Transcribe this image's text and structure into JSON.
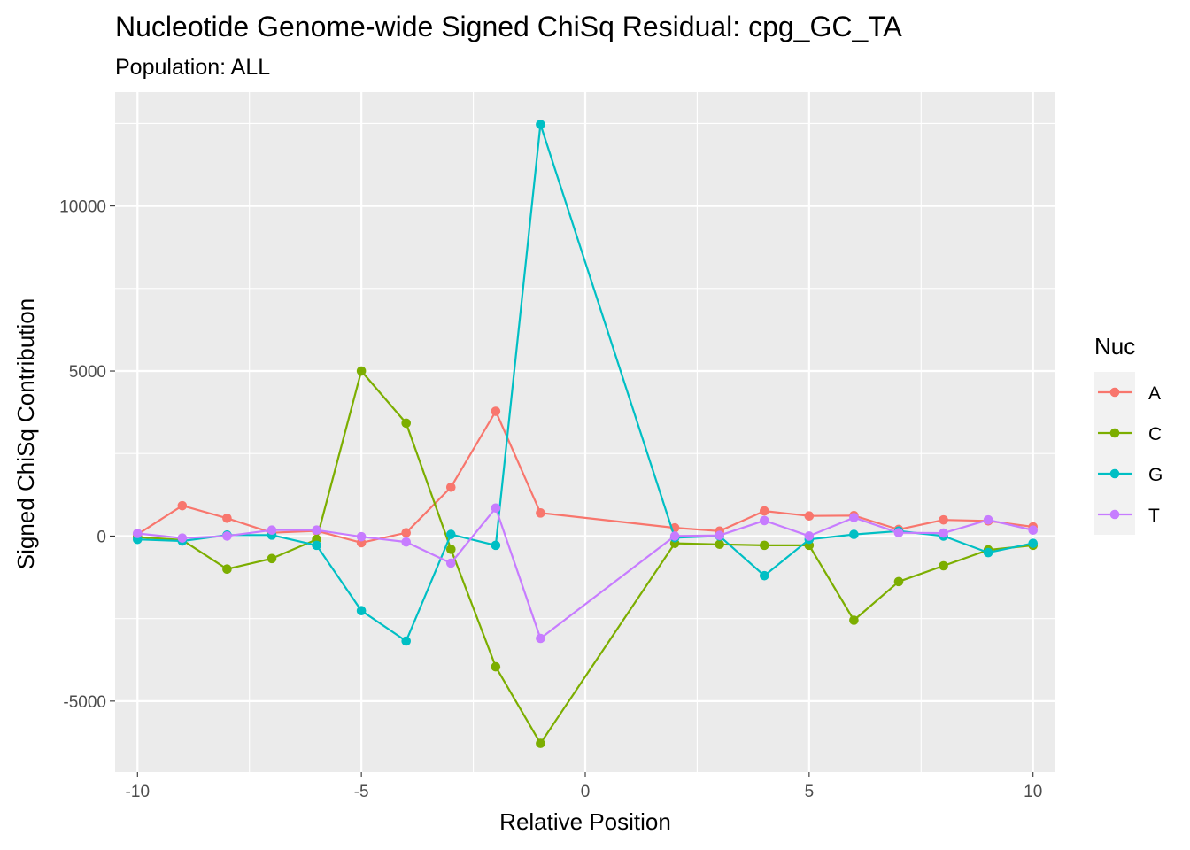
{
  "chart_data": {
    "type": "line",
    "title": "Nucleotide Genome-wide Signed ChiSq Residual: cpg_GC_TA",
    "subtitle": "Population: ALL",
    "xlabel": "Relative Position",
    "ylabel": "Signed ChiSq Contribution",
    "xlim": [
      -10.5,
      10.5
    ],
    "ylim": [
      -7150,
      13450
    ],
    "x_major_ticks": [
      -10,
      -5,
      0,
      5,
      10
    ],
    "x_tick_labels": [
      "-10",
      "-5",
      "0",
      "5",
      "10"
    ],
    "x_minor_ticks": [
      -7.5,
      -2.5,
      2.5,
      7.5
    ],
    "y_major_ticks": [
      -5000,
      0,
      5000,
      10000
    ],
    "y_tick_labels": [
      "-5000",
      "0",
      "5000",
      "10000"
    ],
    "y_minor_ticks": [
      -2500,
      2500,
      7500,
      12500
    ],
    "grid": true,
    "legend": {
      "title": "Nuc",
      "position": "right"
    },
    "x": [
      -10,
      -9,
      -8,
      -7,
      -6,
      -5,
      -4,
      -3,
      -2,
      -1,
      2,
      3,
      4,
      5,
      6,
      7,
      8,
      9,
      10
    ],
    "series": [
      {
        "name": "A",
        "color": "#F8766D",
        "values": [
          50,
          920,
          540,
          100,
          160,
          -200,
          100,
          1480,
          3780,
          700,
          250,
          150,
          760,
          610,
          620,
          200,
          490,
          460,
          280
        ]
      },
      {
        "name": "C",
        "color": "#7CAE00",
        "values": [
          -30,
          -120,
          -1000,
          -680,
          -100,
          5000,
          3420,
          -400,
          -3960,
          -6280,
          -220,
          -250,
          -280,
          -280,
          -2550,
          -1380,
          -900,
          -420,
          -280
        ]
      },
      {
        "name": "G",
        "color": "#00BFC4",
        "values": [
          -100,
          -150,
          30,
          30,
          -280,
          -2260,
          -3180,
          50,
          -280,
          12470,
          -50,
          0,
          -1200,
          -100,
          50,
          150,
          0,
          -500,
          -220
        ]
      },
      {
        "name": "T",
        "color": "#C77CFF",
        "values": [
          80,
          -60,
          0,
          180,
          180,
          -20,
          -180,
          -820,
          850,
          -3100,
          0,
          20,
          470,
          0,
          560,
          100,
          90,
          490,
          180
        ]
      }
    ]
  }
}
